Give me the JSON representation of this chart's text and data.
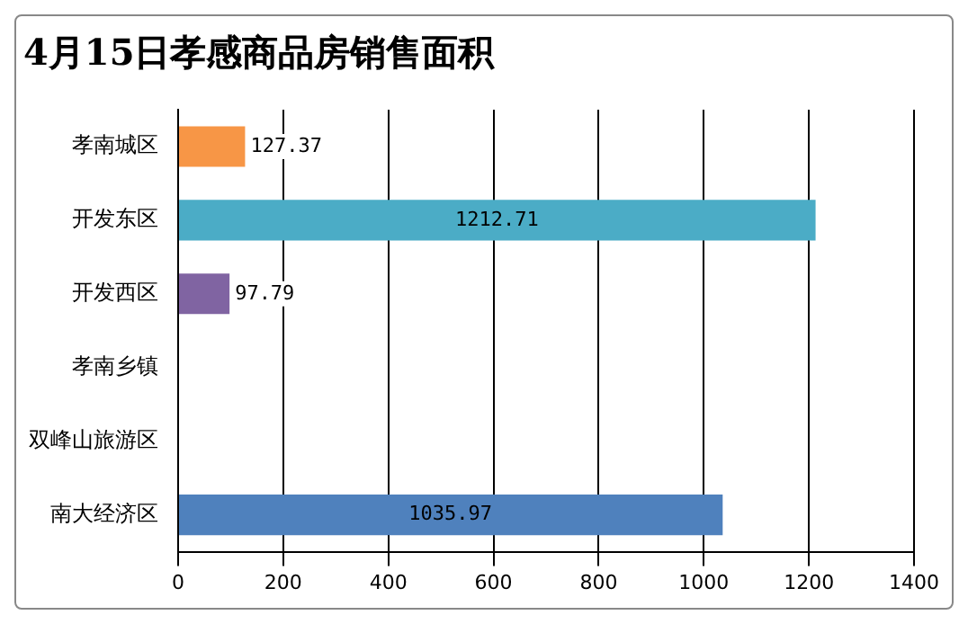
{
  "chart_data": {
    "type": "bar",
    "orientation": "horizontal",
    "title": "4月15日孝感商品房销售面积",
    "categories": [
      "孝南城区",
      "开发东区",
      "开发西区",
      "孝南乡镇",
      "双峰山旅游区",
      "南大经济区"
    ],
    "values": [
      127.37,
      1212.71,
      97.79,
      null,
      null,
      1035.97
    ],
    "colors": [
      "#f79646",
      "#4bacc6",
      "#8064a2",
      "#9bbb59",
      "#c0504d",
      "#4f81bd"
    ],
    "xlim": [
      0,
      1400
    ],
    "xticks": [
      0,
      200,
      400,
      600,
      800,
      1000,
      1200,
      1400
    ],
    "grid": "x",
    "data_labels": true,
    "legend": false
  }
}
